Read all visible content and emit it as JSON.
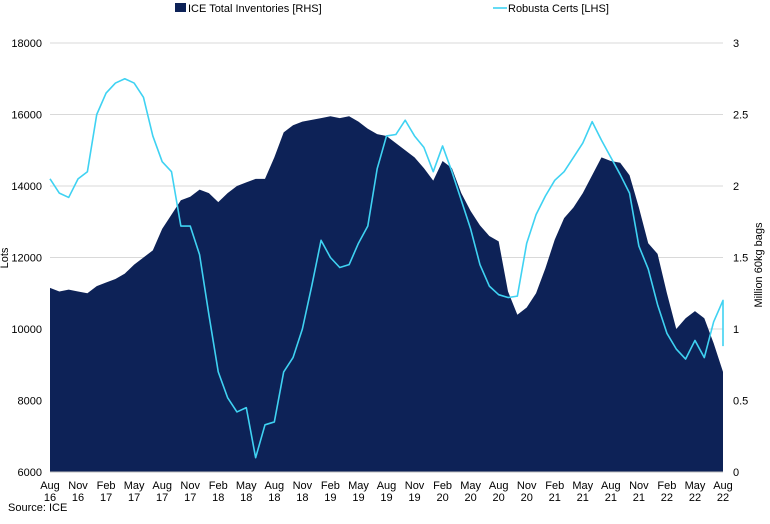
{
  "chart_data": {
    "type": "line",
    "title": "",
    "legend": {
      "placement": "top-center"
    },
    "grid": {
      "horizontal": true,
      "vertical": false
    },
    "x_ticks": [
      {
        "x": 0,
        "month": "Aug",
        "year": "16"
      },
      {
        "x": 3,
        "month": "Nov",
        "year": "16"
      },
      {
        "x": 6,
        "month": "Feb",
        "year": "17"
      },
      {
        "x": 9,
        "month": "May",
        "year": "17"
      },
      {
        "x": 12,
        "month": "Aug",
        "year": "17"
      },
      {
        "x": 15,
        "month": "Nov",
        "year": "17"
      },
      {
        "x": 18,
        "month": "Feb",
        "year": "18"
      },
      {
        "x": 21,
        "month": "May",
        "year": "18"
      },
      {
        "x": 24,
        "month": "Aug",
        "year": "18"
      },
      {
        "x": 27,
        "month": "Nov",
        "year": "18"
      },
      {
        "x": 30,
        "month": "Feb",
        "year": "19"
      },
      {
        "x": 33,
        "month": "May",
        "year": "19"
      },
      {
        "x": 36,
        "month": "Aug",
        "year": "19"
      },
      {
        "x": 39,
        "month": "Nov",
        "year": "19"
      },
      {
        "x": 42,
        "month": "Feb",
        "year": "20"
      },
      {
        "x": 45,
        "month": "May",
        "year": "20"
      },
      {
        "x": 48,
        "month": "Aug",
        "year": "20"
      },
      {
        "x": 51,
        "month": "Nov",
        "year": "20"
      },
      {
        "x": 54,
        "month": "Feb",
        "year": "21"
      },
      {
        "x": 57,
        "month": "May",
        "year": "21"
      },
      {
        "x": 60,
        "month": "Aug",
        "year": "21"
      },
      {
        "x": 63,
        "month": "Nov",
        "year": "21"
      },
      {
        "x": 66,
        "month": "Feb",
        "year": "22"
      },
      {
        "x": 69,
        "month": "May",
        "year": "22"
      },
      {
        "x": 72,
        "month": "Aug",
        "year": "22"
      }
    ],
    "x_range": [
      0,
      72
    ],
    "y_left": {
      "label": "Lots",
      "range": [
        6000,
        18000
      ],
      "ticks": [
        6000,
        8000,
        10000,
        12000,
        14000,
        16000,
        18000
      ]
    },
    "y_right": {
      "label": "Million 60kg bags",
      "range": [
        0,
        3
      ],
      "ticks": [
        0,
        0.5,
        1,
        1.5,
        2,
        2.5,
        3
      ]
    },
    "series": [
      {
        "name": "ICE Total Inventories [RHS]",
        "kind": "area",
        "axis": "left",
        "color": "#0d2257",
        "points": [
          [
            0,
            11150
          ],
          [
            1,
            11050
          ],
          [
            2,
            11100
          ],
          [
            3,
            11050
          ],
          [
            4,
            11000
          ],
          [
            5,
            11200
          ],
          [
            6,
            11300
          ],
          [
            7,
            11400
          ],
          [
            8,
            11550
          ],
          [
            9,
            11800
          ],
          [
            10,
            12000
          ],
          [
            11,
            12200
          ],
          [
            12,
            12800
          ],
          [
            13,
            13200
          ],
          [
            14,
            13600
          ],
          [
            15,
            13700
          ],
          [
            16,
            13900
          ],
          [
            17,
            13800
          ],
          [
            18,
            13550
          ],
          [
            19,
            13800
          ],
          [
            20,
            14000
          ],
          [
            21,
            14100
          ],
          [
            22,
            14200
          ],
          [
            23,
            14200
          ],
          [
            24,
            14800
          ],
          [
            25,
            15500
          ],
          [
            26,
            15700
          ],
          [
            27,
            15800
          ],
          [
            28,
            15850
          ],
          [
            29,
            15900
          ],
          [
            30,
            15950
          ],
          [
            31,
            15900
          ],
          [
            32,
            15950
          ],
          [
            33,
            15800
          ],
          [
            34,
            15600
          ],
          [
            35,
            15450
          ],
          [
            36,
            15400
          ],
          [
            37,
            15200
          ],
          [
            38,
            15000
          ],
          [
            39,
            14800
          ],
          [
            40,
            14500
          ],
          [
            41,
            14150
          ],
          [
            42,
            14700
          ],
          [
            43,
            14500
          ],
          [
            44,
            13800
          ],
          [
            45,
            13300
          ],
          [
            46,
            12900
          ],
          [
            47,
            12600
          ],
          [
            48,
            12450
          ],
          [
            49,
            11050
          ],
          [
            50,
            10400
          ],
          [
            51,
            10600
          ],
          [
            52,
            11000
          ],
          [
            53,
            11700
          ],
          [
            54,
            12500
          ],
          [
            55,
            13100
          ],
          [
            56,
            13400
          ],
          [
            57,
            13800
          ],
          [
            58,
            14300
          ],
          [
            59,
            14800
          ],
          [
            60,
            14700
          ],
          [
            61,
            14650
          ],
          [
            62,
            14300
          ],
          [
            63,
            13400
          ],
          [
            64,
            12400
          ],
          [
            65,
            12100
          ],
          [
            66,
            11000
          ],
          [
            67,
            10000
          ],
          [
            68,
            10300
          ],
          [
            69,
            10500
          ],
          [
            70,
            10300
          ],
          [
            71,
            9600
          ],
          [
            72,
            8800
          ],
          [
            73,
            8700
          ]
        ]
      },
      {
        "name": "Robusta Certs [LHS]",
        "kind": "line",
        "axis": "right",
        "color": "#3fd2f2",
        "points": [
          [
            0,
            2.05
          ],
          [
            1,
            1.95
          ],
          [
            2,
            1.92
          ],
          [
            3,
            2.05
          ],
          [
            4,
            2.1
          ],
          [
            5,
            2.5
          ],
          [
            6,
            2.65
          ],
          [
            7,
            2.72
          ],
          [
            8,
            2.75
          ],
          [
            9,
            2.72
          ],
          [
            10,
            2.62
          ],
          [
            11,
            2.35
          ],
          [
            12,
            2.17
          ],
          [
            13,
            2.1
          ],
          [
            14,
            1.72
          ],
          [
            15,
            1.72
          ],
          [
            16,
            1.52
          ],
          [
            17,
            1.1
          ],
          [
            18,
            0.7
          ],
          [
            19,
            0.52
          ],
          [
            20,
            0.42
          ],
          [
            21,
            0.45
          ],
          [
            22,
            0.1
          ],
          [
            23,
            0.33
          ],
          [
            24,
            0.35
          ],
          [
            25,
            0.7
          ],
          [
            26,
            0.8
          ],
          [
            27,
            1.0
          ],
          [
            28,
            1.3
          ],
          [
            29,
            1.62
          ],
          [
            30,
            1.5
          ],
          [
            31,
            1.43
          ],
          [
            32,
            1.45
          ],
          [
            33,
            1.6
          ],
          [
            34,
            1.72
          ],
          [
            35,
            2.12
          ],
          [
            36,
            2.35
          ],
          [
            37,
            2.36
          ],
          [
            38,
            2.46
          ],
          [
            39,
            2.35
          ],
          [
            40,
            2.27
          ],
          [
            41,
            2.1
          ],
          [
            42,
            2.28
          ],
          [
            43,
            2.1
          ],
          [
            44,
            1.9
          ],
          [
            45,
            1.7
          ],
          [
            46,
            1.45
          ],
          [
            47,
            1.3
          ],
          [
            48,
            1.24
          ],
          [
            49,
            1.22
          ],
          [
            50,
            1.23
          ],
          [
            51,
            1.6
          ],
          [
            52,
            1.8
          ],
          [
            53,
            1.93
          ],
          [
            54,
            2.04
          ],
          [
            55,
            2.1
          ],
          [
            56,
            2.2
          ],
          [
            57,
            2.3
          ],
          [
            58,
            2.45
          ],
          [
            59,
            2.32
          ],
          [
            60,
            2.2
          ],
          [
            61,
            2.08
          ],
          [
            62,
            1.95
          ],
          [
            63,
            1.58
          ],
          [
            64,
            1.42
          ],
          [
            65,
            1.17
          ],
          [
            66,
            0.97
          ],
          [
            67,
            0.86
          ],
          [
            68,
            0.79
          ],
          [
            69,
            0.92
          ],
          [
            70,
            0.8
          ],
          [
            71,
            1.05
          ],
          [
            72,
            1.2
          ],
          [
            73,
            1.06
          ],
          [
            74,
            0.88
          ]
        ]
      }
    ],
    "source": "Source: ICE"
  }
}
